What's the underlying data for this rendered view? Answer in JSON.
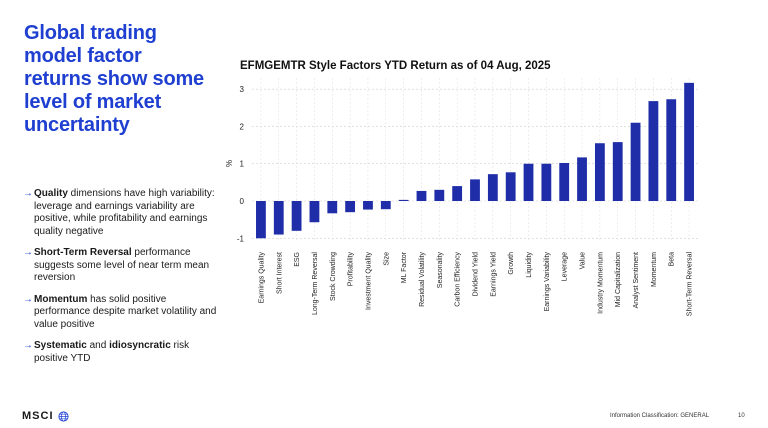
{
  "headline": "Global trading model factor returns show some level of market uncertainty",
  "bullets": [
    {
      "parts": [
        {
          "text": "Quality",
          "bold": true
        },
        {
          "text": " dimensions have high variability: leverage and earnings variability are positive, while profitability and earnings quality negative",
          "bold": false
        }
      ]
    },
    {
      "parts": [
        {
          "text": "Short-Term Reversal",
          "bold": true
        },
        {
          "text": " performance suggests some level of near term mean reversion",
          "bold": false
        }
      ]
    },
    {
      "parts": [
        {
          "text": "Momentum",
          "bold": true
        },
        {
          "text": " has solid positive performance despite market volatility and value positive",
          "bold": false
        }
      ]
    },
    {
      "parts": [
        {
          "text": "Systematic",
          "bold": true
        },
        {
          "text": " and ",
          "bold": false
        },
        {
          "text": "idiosyncratic",
          "bold": true
        },
        {
          "text": " risk positive YTD",
          "bold": false
        }
      ]
    }
  ],
  "bullet_arrow": "→",
  "chart_data": {
    "type": "bar",
    "title": "EFMGEMTR Style Factors YTD Return as of 04 Aug, 2025",
    "ylabel": "%",
    "xlabel": "",
    "ylim": [
      -1.1,
      3.3
    ],
    "yticks": [
      -1,
      0,
      1,
      2,
      3
    ],
    "grid": true,
    "bar_color": "#1f2ea8",
    "categories": [
      "Earnings Quality",
      "Short Interest",
      "ESG",
      "Long-Term Reversal",
      "Stock Crowding",
      "Profitability",
      "Investment Quality",
      "Size",
      "ML Factor",
      "Residual Volatility",
      "Seasonality",
      "Carbon Efficiency",
      "Dividend Yield",
      "Earnings Yield",
      "Growth",
      "Liquidity",
      "Earnings Variability",
      "Leverage",
      "Value",
      "Industry Momentum",
      "Mid Capitalization",
      "Analyst Sentiment",
      "Momentum",
      "Beta",
      "Short-Term Reversal"
    ],
    "values": [
      -1.0,
      -0.9,
      -0.8,
      -0.57,
      -0.33,
      -0.3,
      -0.23,
      -0.22,
      0.03,
      0.27,
      0.3,
      0.4,
      0.58,
      0.72,
      0.77,
      1.0,
      1.0,
      1.02,
      1.17,
      1.55,
      1.58,
      2.1,
      2.68,
      2.73,
      3.17
    ]
  },
  "logo": {
    "text": "MSCI",
    "mark": "globe-icon"
  },
  "footer": {
    "classification": "Information Classification: GENERAL",
    "page": "10"
  }
}
